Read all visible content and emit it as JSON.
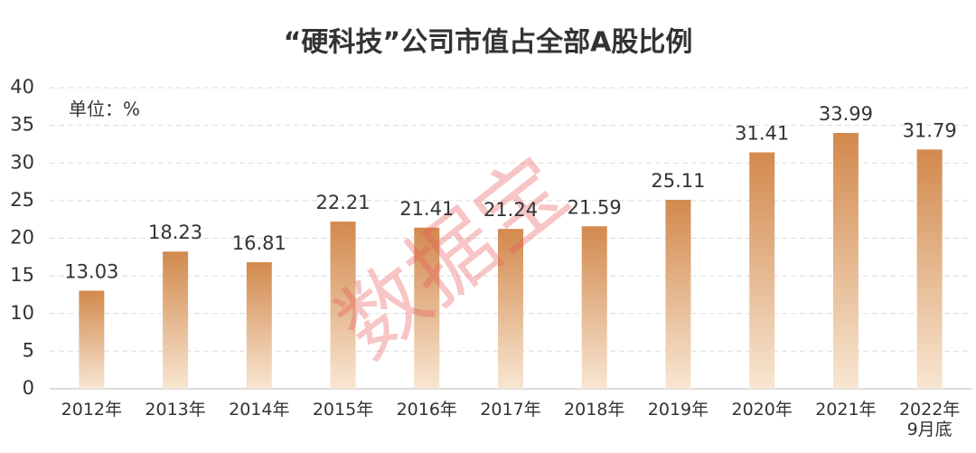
{
  "chart_data": {
    "type": "bar",
    "title": "“硬科技”公司市值占全部A股比例",
    "subtitle": "单位：%",
    "watermark": "数据宝",
    "categories": [
      "2012年",
      "2013年",
      "2014年",
      "2015年",
      "2016年",
      "2017年",
      "2018年",
      "2019年",
      "2020年",
      "2021年",
      "2022年\n9月底"
    ],
    "values": [
      13.03,
      18.23,
      16.81,
      22.21,
      21.41,
      21.24,
      21.59,
      25.11,
      31.41,
      33.99,
      31.79
    ],
    "color": "#d2894d",
    "ylim": [
      0,
      40
    ],
    "yticks": [
      0,
      5,
      10,
      15,
      20,
      25,
      30,
      35,
      40
    ],
    "grid": true
  }
}
